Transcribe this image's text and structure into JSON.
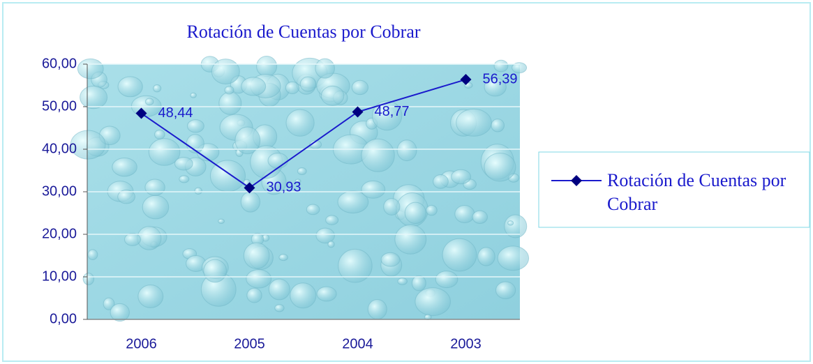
{
  "chart_data": {
    "type": "line",
    "title": "Rotación de Cuentas por Cobrar",
    "categories": [
      "2006",
      "2005",
      "2004",
      "2003"
    ],
    "series": [
      {
        "name": "Rotación de Cuentas por Cobrar",
        "color": "#1a1acc",
        "marker_color": "#000080",
        "values": [
          48.44,
          30.93,
          48.77,
          56.39
        ],
        "value_labels": [
          "48,44",
          "30,93",
          "48,77",
          "56,39"
        ]
      }
    ],
    "ylim": [
      0,
      60
    ],
    "yticks": [
      {
        "value": 0,
        "label": "0,00"
      },
      {
        "value": 10,
        "label": "10,00"
      },
      {
        "value": 20,
        "label": "20,00"
      },
      {
        "value": 30,
        "label": "30,00"
      },
      {
        "value": 40,
        "label": "40,00"
      },
      {
        "value": 50,
        "label": "50,00"
      },
      {
        "value": 60,
        "label": "60,00"
      }
    ],
    "grid": true,
    "legend": "right"
  }
}
